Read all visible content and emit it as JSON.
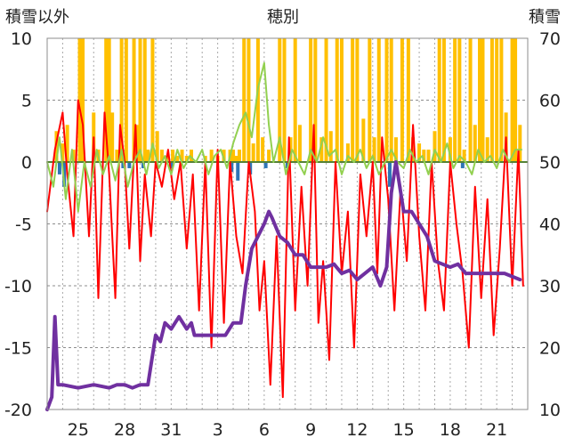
{
  "chart_data": {
    "type": "bar+line",
    "title": "穂別",
    "ylabel_left": "積雪以外",
    "ylabel_right": "積雪",
    "ylim_left": [
      -20,
      10
    ],
    "yticks_left": [
      10,
      5,
      0,
      -5,
      -10,
      -15,
      -20
    ],
    "ylim_right": [
      10,
      70
    ],
    "yticks_right": [
      70,
      60,
      50,
      40,
      30,
      20,
      10
    ],
    "xlim": [
      23,
      54
    ],
    "xtick_positions": [
      25,
      28,
      31,
      34,
      37,
      40,
      43,
      46,
      49,
      52
    ],
    "xtick_labels": [
      "25",
      "28",
      "31",
      "3",
      "6",
      "9",
      "12",
      "15",
      "18",
      "21"
    ],
    "grid": true,
    "colors": {
      "snowfall_bars": "#ffc000",
      "precip_bars": "#2e75b6",
      "temperature": "#ff0000",
      "wind": "#92d050",
      "snow_depth": "#7030a0",
      "zero_line": "#548235",
      "grid": "#8c8c8c"
    },
    "series": [
      {
        "type": "bar",
        "axis": "left",
        "role": "snowfall",
        "x": [
          23.6,
          24.0,
          24.3,
          24.7,
          25.1,
          25.3,
          26.0,
          26.3,
          26.8,
          27.0,
          27.2,
          27.5,
          27.8,
          28.1,
          28.6,
          28.8,
          29.0,
          29.3,
          29.5,
          29.8,
          30.1,
          30.4,
          30.7,
          31.1,
          31.4,
          31.7,
          32.0,
          32.3,
          33.2,
          33.6,
          34.0,
          34.4,
          34.8,
          35.0,
          35.2,
          35.4,
          35.7,
          36.0,
          36.3,
          36.6,
          36.9,
          37.3,
          38.0,
          38.3,
          38.7,
          39.0,
          39.3,
          40.0,
          40.3,
          40.7,
          41.0,
          41.3,
          41.7,
          42.0,
          42.4,
          42.7,
          43.0,
          43.4,
          43.8,
          44.1,
          44.4,
          44.9,
          45.2,
          45.5,
          45.9,
          46.3,
          46.6,
          47.0,
          47.3,
          47.6,
          48.0,
          48.3,
          48.6,
          49.0,
          49.3,
          49.6,
          49.9,
          50.3,
          50.6,
          50.9,
          51.1,
          51.4,
          51.7,
          52.0,
          52.3,
          52.6,
          53.0,
          53.2,
          53.5
        ],
        "values": [
          2.5,
          1.5,
          3.0,
          1.0,
          10.0,
          10.0,
          4.0,
          1.0,
          10.0,
          10.0,
          4.0,
          1.0,
          10.0,
          10.0,
          10.0,
          3.0,
          10.0,
          10.0,
          1.0,
          10.0,
          2.5,
          1.0,
          0.5,
          1.0,
          0.5,
          1.0,
          0.5,
          1.0,
          0.5,
          1.0,
          0.5,
          1.0,
          1.0,
          1.0,
          0.5,
          1.0,
          10.0,
          10.0,
          1.5,
          10.0,
          2.0,
          1.0,
          10.0,
          10.0,
          2.0,
          10.0,
          3.0,
          10.0,
          10.0,
          2.0,
          10.0,
          2.5,
          10.0,
          10.0,
          1.5,
          10.0,
          10.0,
          3.5,
          10.0,
          2.0,
          10.0,
          10.0,
          10.0,
          2.0,
          10.0,
          10.0,
          2.0,
          1.5,
          1.0,
          1.0,
          2.5,
          10.0,
          10.0,
          2.0,
          10.0,
          10.0,
          1.0,
          10.0,
          3.0,
          10.0,
          10.0,
          2.0,
          10.0,
          10.0,
          10.0,
          4.0,
          10.0,
          10.0,
          3.0
        ]
      },
      {
        "type": "bar",
        "axis": "left",
        "role": "precipitation",
        "x": [
          23.8,
          24.1,
          27.9,
          28.3,
          29.2,
          31.0,
          34.9,
          35.3,
          36.1,
          37.1,
          38.5,
          45.1,
          45.5,
          49.8
        ],
        "values": [
          -1.0,
          -2.0,
          -0.5,
          -0.5,
          -0.5,
          -0.5,
          -0.8,
          -1.5,
          -1.0,
          -0.5,
          -0.5,
          -2.0,
          -0.8,
          -0.5
        ]
      },
      {
        "type": "line",
        "axis": "left",
        "role": "temperature",
        "x": [
          23.0,
          23.5,
          24.0,
          24.3,
          24.7,
          25.0,
          25.3,
          25.7,
          26.0,
          26.3,
          26.7,
          27.0,
          27.4,
          27.7,
          28.0,
          28.3,
          28.7,
          29.0,
          29.3,
          29.7,
          30.0,
          30.4,
          30.8,
          31.2,
          31.6,
          32.0,
          32.4,
          32.8,
          33.2,
          33.6,
          34.0,
          34.4,
          34.8,
          35.2,
          35.6,
          36.0,
          36.4,
          36.7,
          37.0,
          37.4,
          37.8,
          38.2,
          38.6,
          39.0,
          39.4,
          39.8,
          40.2,
          40.5,
          40.8,
          41.2,
          41.6,
          42.0,
          42.4,
          42.8,
          43.2,
          43.6,
          44.0,
          44.3,
          44.6,
          45.0,
          45.4,
          45.8,
          46.2,
          46.6,
          47.0,
          47.4,
          47.8,
          48.2,
          48.6,
          49.0,
          49.4,
          49.8,
          50.2,
          50.6,
          51.0,
          51.4,
          51.8,
          52.2,
          52.6,
          53.0,
          53.4,
          53.7
        ],
        "values": [
          -4.0,
          1.0,
          4.0,
          -1.0,
          -6.0,
          5.0,
          3.0,
          -6.0,
          2.0,
          -11.0,
          4.0,
          -1.0,
          -11.0,
          3.0,
          0.0,
          -7.0,
          3.0,
          -8.0,
          -1.0,
          -6.0,
          0.0,
          -2.0,
          1.0,
          -3.0,
          0.0,
          -7.0,
          -1.0,
          -12.0,
          0.0,
          -15.0,
          1.0,
          -13.0,
          0.0,
          -6.0,
          -9.0,
          0.0,
          -4.0,
          -12.0,
          -8.0,
          -18.0,
          -6.0,
          -19.0,
          2.0,
          -12.0,
          -2.0,
          -10.0,
          3.0,
          -13.0,
          -8.0,
          -16.0,
          0.0,
          -9.0,
          -4.0,
          -15.0,
          -1.0,
          -6.0,
          0.0,
          -9.0,
          2.0,
          -3.0,
          -12.0,
          -2.0,
          -8.0,
          3.0,
          -6.0,
          -12.0,
          0.0,
          -8.0,
          -12.0,
          0.0,
          -5.0,
          -9.0,
          -15.0,
          -2.0,
          -11.0,
          -3.0,
          -14.0,
          -7.0,
          2.0,
          -10.0,
          1.0,
          -10.0
        ]
      },
      {
        "type": "line",
        "axis": "left",
        "role": "wind",
        "x": [
          23.0,
          23.4,
          23.8,
          24.2,
          24.6,
          25.0,
          25.4,
          25.8,
          26.2,
          26.6,
          27.0,
          27.4,
          27.8,
          28.2,
          28.6,
          29.0,
          29.4,
          29.8,
          30.2,
          30.6,
          31.0,
          31.4,
          31.8,
          32.2,
          32.6,
          33.0,
          33.4,
          33.8,
          34.2,
          34.6,
          35.0,
          35.4,
          35.8,
          36.2,
          36.6,
          37.0,
          37.3,
          37.6,
          38.0,
          38.4,
          38.8,
          39.2,
          39.6,
          40.0,
          40.4,
          40.8,
          41.2,
          41.6,
          42.0,
          42.4,
          42.8,
          43.2,
          43.6,
          44.0,
          44.4,
          44.8,
          45.2,
          45.6,
          46.0,
          46.4,
          46.8,
          47.2,
          47.6,
          48.0,
          48.4,
          48.8,
          49.2,
          49.6,
          50.0,
          50.4,
          50.8,
          51.2,
          51.6,
          52.0,
          52.4,
          52.8,
          53.2,
          53.6
        ],
        "values": [
          0.0,
          -2.0,
          2.0,
          -3.0,
          1.0,
          -4.0,
          0.0,
          -2.0,
          1.0,
          -1.0,
          0.5,
          -1.5,
          1.0,
          -2.0,
          0.0,
          1.0,
          -1.0,
          1.5,
          -0.5,
          0.5,
          -1.0,
          1.0,
          -0.5,
          0.5,
          0.0,
          1.0,
          -1.0,
          0.5,
          1.0,
          -0.5,
          1.5,
          3.0,
          4.0,
          2.0,
          6.0,
          8.0,
          3.0,
          0.0,
          2.0,
          -1.0,
          1.0,
          0.0,
          -1.0,
          1.0,
          0.0,
          2.0,
          0.5,
          1.0,
          -1.0,
          0.5,
          0.0,
          1.0,
          -0.5,
          0.5,
          -1.0,
          0.0,
          1.0,
          0.0,
          -0.5,
          1.0,
          0.0,
          0.5,
          -1.0,
          1.0,
          0.0,
          1.5,
          -0.5,
          0.5,
          0.0,
          -1.0,
          1.0,
          0.0,
          0.5,
          -0.5,
          1.0,
          0.0,
          1.0,
          1.0
        ]
      },
      {
        "type": "line",
        "axis": "right",
        "role": "snow_depth",
        "x": [
          23.0,
          23.3,
          23.5,
          23.7,
          24.0,
          25.0,
          26.0,
          27.0,
          27.5,
          28.0,
          28.5,
          29.0,
          29.5,
          30.0,
          30.3,
          30.6,
          31.0,
          31.5,
          32.0,
          32.3,
          32.5,
          33.0,
          33.3,
          33.6,
          34.0,
          34.5,
          35.0,
          35.5,
          35.8,
          36.2,
          36.6,
          37.0,
          37.3,
          37.5,
          38.0,
          38.5,
          39.0,
          39.5,
          40.0,
          40.5,
          41.0,
          41.5,
          42.0,
          42.5,
          43.0,
          43.5,
          44.0,
          44.5,
          44.9,
          45.2,
          45.5,
          46.0,
          46.5,
          47.0,
          47.5,
          48.0,
          48.5,
          49.0,
          49.5,
          50.0,
          50.5,
          51.0,
          51.5,
          52.0,
          52.5,
          53.0,
          53.5
        ],
        "values": [
          10.0,
          12.0,
          25.0,
          14.0,
          14.0,
          13.5,
          14.0,
          13.5,
          14.0,
          14.0,
          13.5,
          14.0,
          14.0,
          22.0,
          21.0,
          24.0,
          23.0,
          25.0,
          23.0,
          24.0,
          22.0,
          22.0,
          22.0,
          22.0,
          22.0,
          22.0,
          24.0,
          24.0,
          30.0,
          36.0,
          38.0,
          40.0,
          42.0,
          41.0,
          38.0,
          37.0,
          35.0,
          35.0,
          33.0,
          33.0,
          33.0,
          33.5,
          32.0,
          32.5,
          31.0,
          32.0,
          33.0,
          30.0,
          33.0,
          45.0,
          50.0,
          42.0,
          42.0,
          40.0,
          38.0,
          34.0,
          33.5,
          33.0,
          33.5,
          32.0,
          32.0,
          32.0,
          32.0,
          32.0,
          32.0,
          31.5,
          31.0
        ]
      }
    ]
  }
}
